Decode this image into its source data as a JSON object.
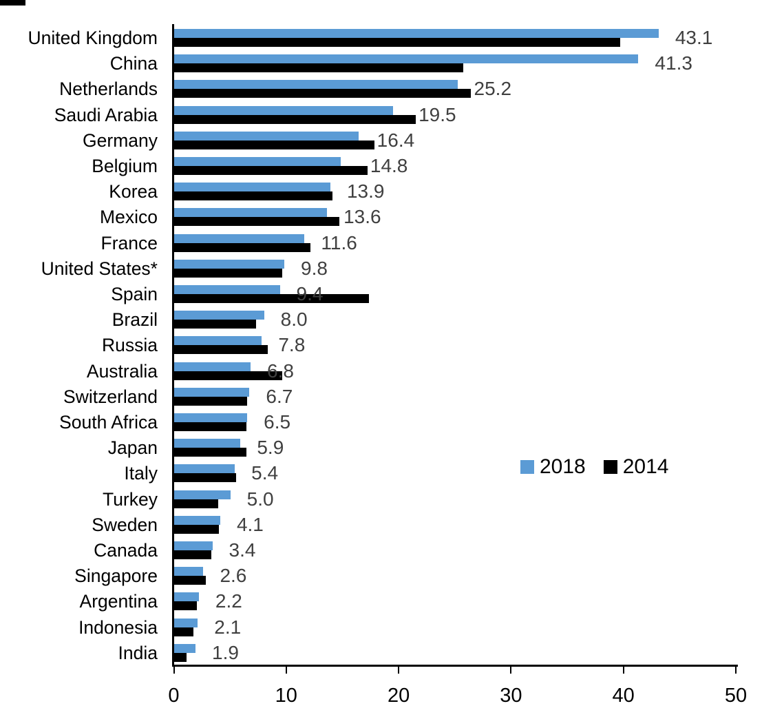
{
  "chart_data": {
    "type": "bar",
    "orientation": "horizontal",
    "title": "",
    "xlabel": "",
    "ylabel": "",
    "xlim": [
      0,
      50
    ],
    "xticks": [
      0,
      10,
      20,
      30,
      40,
      50
    ],
    "xtick_labels": [
      "0",
      "10",
      "20",
      "30",
      "40",
      "50"
    ],
    "grid": false,
    "legend_position": "middle-right",
    "categories": [
      "United Kingdom",
      "China",
      "Netherlands",
      "Saudi Arabia",
      "Germany",
      "Belgium",
      "Korea",
      "Mexico",
      "France",
      "United States*",
      "Spain",
      "Brazil",
      "Russia",
      "Australia",
      "Switzerland",
      "South Africa",
      "Japan",
      "Italy",
      "Turkey",
      "Sweden",
      "Canada",
      "Singapore",
      "Argentina",
      "Indonesia",
      "India"
    ],
    "series": [
      {
        "name": "2018",
        "color": "#5B9BD5",
        "values": [
          43.1,
          41.3,
          25.2,
          19.5,
          16.4,
          14.8,
          13.9,
          13.6,
          11.6,
          9.8,
          9.4,
          8.0,
          7.8,
          6.8,
          6.7,
          6.5,
          5.9,
          5.4,
          5.0,
          4.1,
          3.4,
          2.6,
          2.2,
          2.1,
          1.9
        ]
      },
      {
        "name": "2014",
        "color": "#000000",
        "values": [
          39.7,
          25.7,
          26.4,
          21.5,
          17.8,
          17.2,
          14.1,
          14.7,
          12.1,
          9.6,
          17.3,
          7.3,
          8.3,
          9.6,
          6.5,
          6.4,
          6.4,
          5.5,
          3.9,
          4.0,
          3.3,
          2.8,
          2.0,
          1.7,
          1.1
        ]
      }
    ],
    "data_labels": {
      "series": "2018",
      "values": [
        "43.1",
        "41.3",
        "25.2",
        "19.5",
        "16.4",
        "14.8",
        "13.9",
        "13.6",
        "11.6",
        "9.8",
        "9.4",
        "8.0",
        "7.8",
        "6.8",
        "6.7",
        "6.5",
        "5.9",
        "5.4",
        "5.0",
        "4.1",
        "3.4",
        "2.6",
        "2.2",
        "2.1",
        "1.9"
      ],
      "color": "#404040"
    },
    "legend": {
      "items": [
        {
          "label": "2018",
          "color": "#5B9BD5"
        },
        {
          "label": "2014",
          "color": "#000000"
        }
      ]
    }
  },
  "colors": {
    "series_2018": "#5B9BD5",
    "series_2014": "#000000",
    "data_label": "#404040",
    "axis": "#000000",
    "background": "#ffffff"
  }
}
